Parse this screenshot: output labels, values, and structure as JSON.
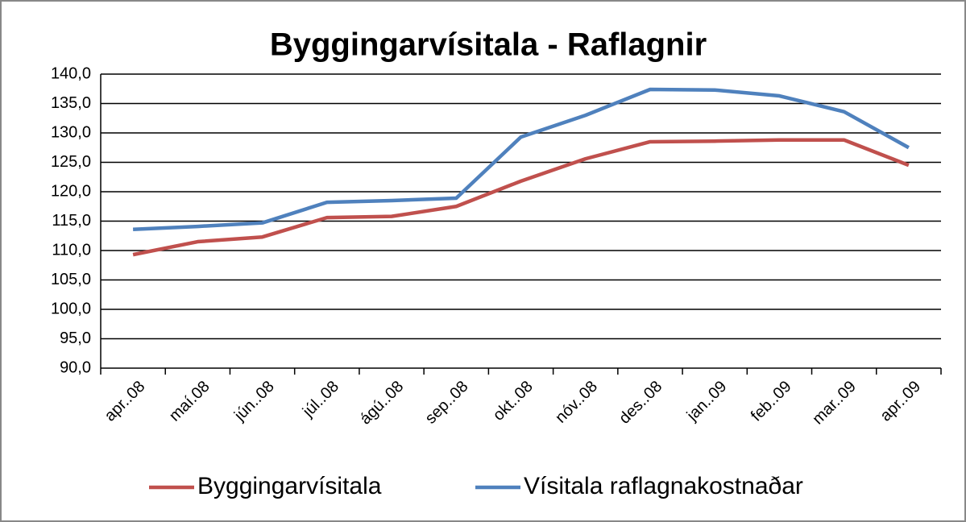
{
  "chart_data": {
    "type": "line",
    "title": "Byggingarvísitala - Raflagnir",
    "categories": [
      "apr..08",
      "maí.08",
      "jún..08",
      "júl..08",
      "ágú..08",
      "sep..08",
      "okt..08",
      "nóv..08",
      "des..08",
      "jan..09",
      "feb..09",
      "mar..09",
      "apr..09"
    ],
    "series": [
      {
        "name": "Byggingarvísitala",
        "color": "#c0504d",
        "values": [
          109.3,
          111.5,
          112.3,
          115.6,
          115.8,
          117.5,
          121.8,
          125.6,
          128.5,
          128.6,
          128.8,
          128.8,
          124.5
        ]
      },
      {
        "name": "Vísitala raflagnakostnaðar",
        "color": "#4f81bd",
        "values": [
          113.6,
          114.1,
          114.7,
          118.2,
          118.5,
          118.9,
          129.3,
          133.0,
          137.4,
          137.3,
          136.3,
          133.6,
          127.5
        ]
      }
    ],
    "ylim": [
      90,
      140
    ],
    "yticks": [
      {
        "value": 90,
        "label": "90,0"
      },
      {
        "value": 95,
        "label": "95,0"
      },
      {
        "value": 100,
        "label": "100,0"
      },
      {
        "value": 105,
        "label": "105,0"
      },
      {
        "value": 110,
        "label": "110,0"
      },
      {
        "value": 115,
        "label": "115,0"
      },
      {
        "value": 120,
        "label": "120,0"
      },
      {
        "value": 125,
        "label": "125,0"
      },
      {
        "value": 130,
        "label": "130,0"
      },
      {
        "value": 135,
        "label": "135,0"
      },
      {
        "value": 140,
        "label": "140,0"
      }
    ],
    "grid": true,
    "legend": "bottom"
  }
}
